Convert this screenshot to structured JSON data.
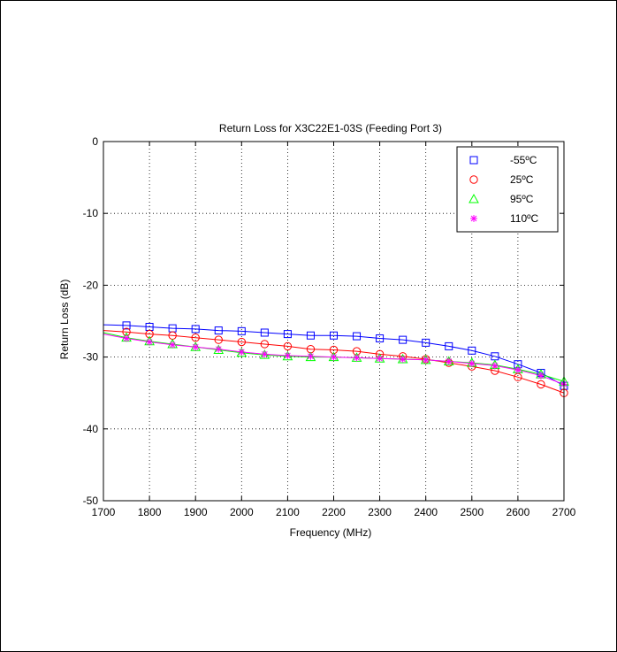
{
  "chart_data": {
    "type": "line",
    "title": "Return Loss for X3C22E1-03S (Feeding Port 3)",
    "xlabel": "Frequency (MHz)",
    "ylabel": "Return Loss (dB)",
    "xlim": [
      1700,
      2700
    ],
    "ylim": [
      -50,
      0
    ],
    "xticks": [
      1700,
      1800,
      1900,
      2000,
      2100,
      2200,
      2300,
      2400,
      2500,
      2600,
      2700
    ],
    "yticks": [
      0,
      -10,
      -20,
      -30,
      -40,
      -50
    ],
    "grid": true,
    "legend_position": "top-right",
    "series": [
      {
        "name": "-55ºC",
        "color": "#0000ff",
        "marker": "square",
        "line_x": [
          1700,
          1750,
          1800,
          1850,
          1900,
          1950,
          2000,
          2050,
          2100,
          2150,
          2200,
          2250,
          2300,
          2350,
          2400,
          2450,
          2500,
          2550,
          2600,
          2650,
          2700
        ],
        "line_y": [
          -25.5,
          -25.6,
          -25.8,
          -26.0,
          -26.1,
          -26.3,
          -26.4,
          -26.6,
          -26.8,
          -27.0,
          -27.0,
          -27.1,
          -27.4,
          -27.6,
          -28.0,
          -28.5,
          -29.1,
          -29.9,
          -31.0,
          -32.2,
          -34.0
        ],
        "marker_x": [
          1750,
          1800,
          1850,
          1900,
          1950,
          2000,
          2050,
          2100,
          2150,
          2200,
          2250,
          2300,
          2350,
          2400,
          2450,
          2500,
          2550,
          2600,
          2650,
          2700
        ],
        "marker_y": [
          -25.6,
          -25.8,
          -26.0,
          -26.1,
          -26.3,
          -26.4,
          -26.6,
          -26.8,
          -27.0,
          -27.0,
          -27.1,
          -27.4,
          -27.6,
          -28.0,
          -28.5,
          -29.1,
          -29.9,
          -31.0,
          -32.2,
          -34.0
        ]
      },
      {
        "name": "25ºC",
        "color": "#ff0000",
        "marker": "circle",
        "line_x": [
          1700,
          1750,
          1800,
          1850,
          1900,
          1950,
          2000,
          2050,
          2100,
          2150,
          2200,
          2250,
          2300,
          2350,
          2400,
          2450,
          2500,
          2550,
          2600,
          2650,
          2700
        ],
        "line_y": [
          -26.3,
          -26.5,
          -26.8,
          -27.0,
          -27.3,
          -27.6,
          -27.9,
          -28.2,
          -28.5,
          -28.9,
          -29.0,
          -29.2,
          -29.6,
          -29.9,
          -30.3,
          -30.8,
          -31.3,
          -31.9,
          -32.8,
          -33.8,
          -35.0
        ],
        "marker_x": [
          1750,
          1800,
          1850,
          1900,
          1950,
          2000,
          2050,
          2100,
          2150,
          2200,
          2250,
          2300,
          2350,
          2400,
          2450,
          2500,
          2550,
          2600,
          2650,
          2700
        ],
        "marker_y": [
          -26.5,
          -26.8,
          -27.0,
          -27.3,
          -27.6,
          -27.9,
          -28.2,
          -28.5,
          -28.9,
          -29.0,
          -29.2,
          -29.6,
          -29.9,
          -30.3,
          -30.8,
          -31.3,
          -31.9,
          -32.8,
          -33.8,
          -35.0
        ]
      },
      {
        "name": "95ºC",
        "color": "#00ff00",
        "marker": "triangle",
        "line_x": [
          1700,
          1750,
          1800,
          1850,
          1900,
          1950,
          2000,
          2050,
          2100,
          2150,
          2200,
          2250,
          2300,
          2350,
          2400,
          2450,
          2500,
          2550,
          2600,
          2650,
          2700
        ],
        "line_y": [
          -26.6,
          -27.3,
          -27.8,
          -28.2,
          -28.6,
          -29.0,
          -29.4,
          -29.7,
          -29.9,
          -30.0,
          -30.0,
          -30.1,
          -30.2,
          -30.3,
          -30.4,
          -30.6,
          -30.8,
          -31.1,
          -31.7,
          -32.4,
          -33.4
        ],
        "marker_x": [
          1750,
          1800,
          1850,
          1900,
          1950,
          2000,
          2050,
          2100,
          2150,
          2200,
          2250,
          2300,
          2350,
          2400,
          2450,
          2500,
          2550,
          2600,
          2650,
          2700
        ],
        "marker_y": [
          -27.3,
          -27.8,
          -28.2,
          -28.6,
          -29.0,
          -29.4,
          -29.7,
          -29.9,
          -30.0,
          -30.0,
          -30.1,
          -30.2,
          -30.3,
          -30.4,
          -30.6,
          -30.8,
          -31.1,
          -31.7,
          -32.4,
          -33.4
        ]
      },
      {
        "name": "110ºC",
        "color": "#ff00ff",
        "marker": "asterisk",
        "line_x": [
          1700,
          1750,
          1800,
          1850,
          1900,
          1950,
          2000,
          2050,
          2100,
          2150,
          2200,
          2250,
          2300,
          2350,
          2400,
          2450,
          2500,
          2550,
          2600,
          2650,
          2700
        ],
        "line_y": [
          -26.8,
          -27.4,
          -27.9,
          -28.3,
          -28.6,
          -28.9,
          -29.3,
          -29.6,
          -29.8,
          -29.9,
          -30.0,
          -30.1,
          -30.2,
          -30.3,
          -30.4,
          -30.6,
          -30.9,
          -31.2,
          -31.8,
          -32.6,
          -33.8
        ],
        "marker_x": [
          1750,
          1800,
          1850,
          1900,
          1950,
          2000,
          2050,
          2100,
          2150,
          2200,
          2250,
          2300,
          2350,
          2400,
          2450,
          2500,
          2550,
          2600,
          2650,
          2700
        ],
        "marker_y": [
          -27.4,
          -27.9,
          -28.3,
          -28.6,
          -28.9,
          -29.3,
          -29.6,
          -29.8,
          -29.9,
          -30.0,
          -30.1,
          -30.2,
          -30.3,
          -30.4,
          -30.6,
          -30.9,
          -31.2,
          -31.8,
          -32.6,
          -33.8
        ]
      }
    ]
  }
}
